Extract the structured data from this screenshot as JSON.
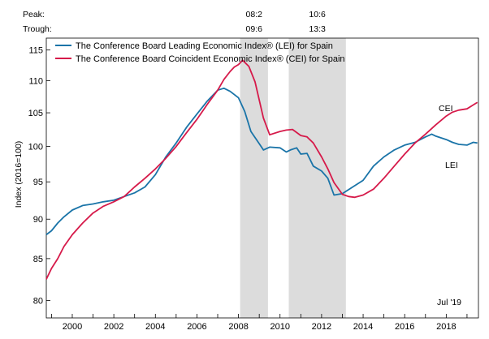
{
  "chart_data": {
    "type": "line",
    "ylabel": "Index (2016=100)",
    "y_log_scale": true,
    "ylim": [
      78,
      117
    ],
    "xlim": [
      1998.75,
      2019.55
    ],
    "x_ticks": [
      2000,
      2002,
      2004,
      2006,
      2008,
      2010,
      2012,
      2014,
      2016,
      2018
    ],
    "x_tick_labels": [
      "2000",
      "2002",
      "2004",
      "2006",
      "2008",
      "2010",
      "2012",
      "2014",
      "2016",
      "2018"
    ],
    "y_ticks": [
      80,
      85,
      90,
      95,
      100,
      105,
      110,
      115
    ],
    "y_tick_labels": [
      "80",
      "85",
      "90",
      "95",
      "100",
      "105",
      "110",
      "115"
    ],
    "peak_label": "Peak:",
    "trough_label": "Trough:",
    "recessions": [
      {
        "peak": "08:2",
        "trough": "09:6",
        "start": 2008.08,
        "end": 2009.42
      },
      {
        "peak": "10:6",
        "trough": "13:3",
        "start": 2010.42,
        "end": 2013.17
      }
    ],
    "legend_position": "top-left",
    "annotation": "Jul '19",
    "colors": {
      "lei": "#1a74a8",
      "cei": "#d61a4a",
      "shade": "#dcdcdc"
    },
    "series": [
      {
        "name": "The Conference Board Leading Economic Index® (LEI) for Spain",
        "label": "LEI",
        "color": "#1a74a8",
        "x": [
          1998.75,
          1999.0,
          1999.3,
          1999.6,
          2000.0,
          2000.5,
          2001.0,
          2001.5,
          2002.0,
          2002.5,
          2003.0,
          2003.5,
          2004.0,
          2004.5,
          2005.0,
          2005.5,
          2006.0,
          2006.5,
          2007.0,
          2007.3,
          2007.6,
          2008.0,
          2008.3,
          2008.6,
          2009.0,
          2009.2,
          2009.5,
          2010.0,
          2010.3,
          2010.5,
          2010.8,
          2011.0,
          2011.3,
          2011.6,
          2012.0,
          2012.3,
          2012.6,
          2013.0,
          2013.5,
          2014.0,
          2014.5,
          2015.0,
          2015.5,
          2016.0,
          2016.5,
          2017.0,
          2017.3,
          2017.5,
          2018.0,
          2018.3,
          2018.6,
          2019.0,
          2019.3,
          2019.5
        ],
        "values": [
          88.0,
          88.5,
          89.5,
          90.3,
          91.2,
          91.8,
          92.0,
          92.3,
          92.5,
          93.0,
          93.5,
          94.3,
          96.0,
          98.5,
          100.5,
          102.8,
          104.8,
          106.8,
          108.5,
          108.8,
          108.3,
          107.3,
          105.2,
          102.2,
          100.4,
          99.5,
          99.9,
          99.8,
          99.2,
          99.5,
          99.8,
          98.9,
          99.0,
          97.2,
          96.5,
          95.5,
          93.2,
          93.4,
          94.3,
          95.2,
          97.2,
          98.5,
          99.5,
          100.2,
          100.6,
          101.4,
          101.8,
          101.5,
          101.0,
          100.6,
          100.3,
          100.2,
          100.6,
          100.5
        ]
      },
      {
        "name": "The Conference Board Coincident Economic Index® (CEI) for Spain",
        "label": "CEI",
        "color": "#d61a4a",
        "x": [
          1998.75,
          1999.0,
          1999.3,
          1999.6,
          2000.0,
          2000.5,
          2001.0,
          2001.5,
          2002.0,
          2002.5,
          2003.0,
          2003.5,
          2004.0,
          2004.5,
          2005.0,
          2005.5,
          2006.0,
          2006.5,
          2007.0,
          2007.3,
          2007.6,
          2007.8,
          2008.0,
          2008.2,
          2008.5,
          2008.8,
          2009.2,
          2009.5,
          2010.0,
          2010.3,
          2010.6,
          2011.0,
          2011.3,
          2011.6,
          2012.0,
          2012.3,
          2012.6,
          2013.0,
          2013.3,
          2013.6,
          2014.0,
          2014.5,
          2015.0,
          2015.5,
          2016.0,
          2016.5,
          2017.0,
          2017.5,
          2018.0,
          2018.3,
          2018.6,
          2019.0,
          2019.3,
          2019.5
        ],
        "values": [
          82.5,
          83.8,
          85.0,
          86.5,
          88.0,
          89.5,
          90.8,
          91.7,
          92.3,
          93.0,
          94.3,
          95.5,
          96.8,
          98.3,
          100.0,
          102.0,
          104.0,
          106.3,
          108.5,
          110.2,
          111.5,
          112.2,
          112.6,
          113.3,
          112.3,
          109.8,
          104.2,
          101.7,
          102.2,
          102.4,
          102.5,
          101.6,
          101.4,
          100.5,
          98.5,
          96.8,
          94.9,
          93.3,
          93.0,
          92.9,
          93.2,
          94.0,
          95.5,
          97.2,
          98.9,
          100.5,
          101.8,
          103.2,
          104.5,
          105.1,
          105.4,
          105.6,
          106.2,
          106.6
        ]
      }
    ]
  }
}
